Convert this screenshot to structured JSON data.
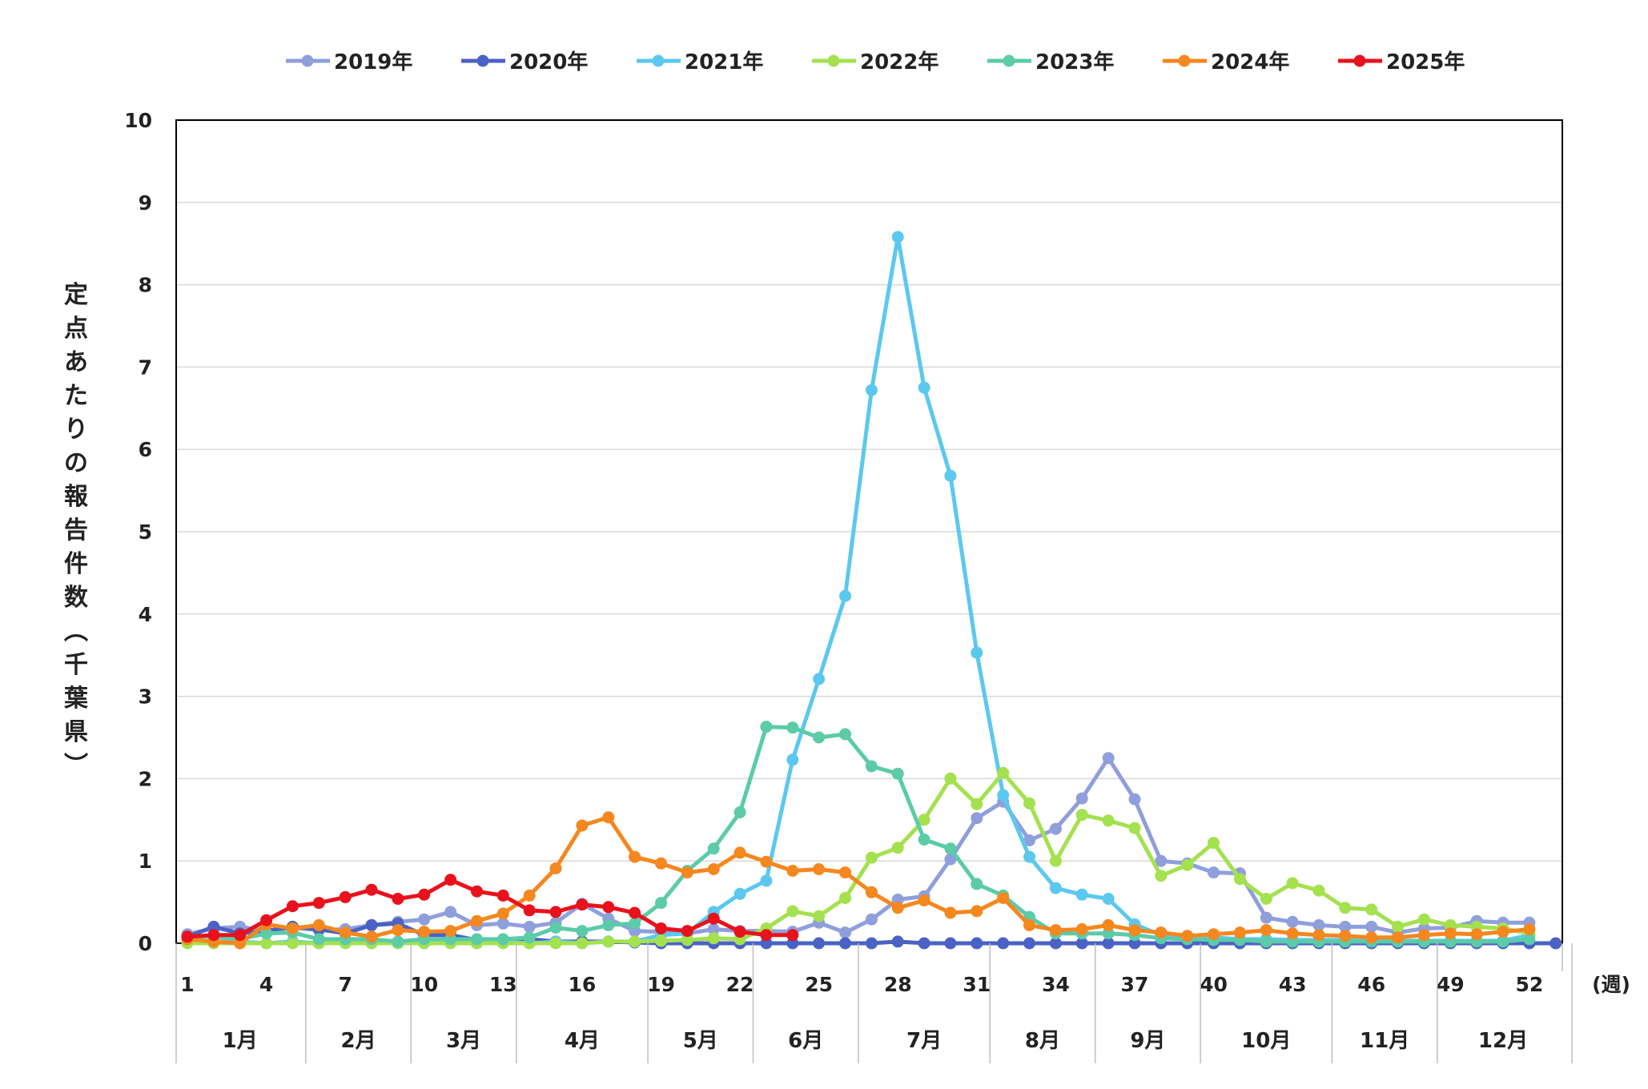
{
  "chart_data": {
    "type": "line",
    "ylabel": "定点あたりの報告件数（千葉県）",
    "xlabel": "(週)",
    "ylim": [
      0,
      10
    ],
    "yticks": [
      "0",
      "1",
      "2",
      "3",
      "4",
      "5",
      "6",
      "7",
      "8",
      "9",
      "10"
    ],
    "xlim": [
      1,
      53
    ],
    "xticks": [
      "1",
      "4",
      "7",
      "10",
      "13",
      "16",
      "19",
      "22",
      "25",
      "28",
      "31",
      "34",
      "37",
      "40",
      "43",
      "46",
      "49",
      "52"
    ],
    "months": [
      {
        "label": "1月",
        "start": 0.5,
        "end": 5.5
      },
      {
        "label": "2月",
        "start": 5.5,
        "end": 9.5
      },
      {
        "label": "3月",
        "start": 9.5,
        "end": 13.5
      },
      {
        "label": "4月",
        "start": 13.5,
        "end": 18.5
      },
      {
        "label": "5月",
        "start": 18.5,
        "end": 22.5
      },
      {
        "label": "6月",
        "start": 22.5,
        "end": 26.5
      },
      {
        "label": "7月",
        "start": 26.5,
        "end": 31.5
      },
      {
        "label": "8月",
        "start": 31.5,
        "end": 35.5
      },
      {
        "label": "9月",
        "start": 35.5,
        "end": 39.5
      },
      {
        "label": "10月",
        "start": 39.5,
        "end": 44.5
      },
      {
        "label": "11月",
        "start": 44.5,
        "end": 48.5
      },
      {
        "label": "12月",
        "start": 48.5,
        "end": 53.5
      }
    ],
    "grid": "horizontal",
    "legend_position": "top",
    "series": [
      {
        "name": "2019年",
        "color": "#8f9fdc",
        "start_week": 1,
        "values": [
          0.11,
          0.18,
          0.2,
          0.15,
          0.19,
          0.16,
          0.17,
          0.22,
          0.26,
          0.29,
          0.38,
          0.22,
          0.24,
          0.2,
          0.25,
          0.48,
          0.3,
          0.15,
          0.14,
          0.12,
          0.17,
          0.15,
          0.15,
          0.14,
          0.25,
          0.13,
          0.29,
          0.53,
          0.57,
          1.02,
          1.52,
          1.72,
          1.25,
          1.39,
          1.76,
          2.25,
          1.75,
          1.0,
          0.97,
          0.86,
          0.85,
          0.31,
          0.26,
          0.22,
          0.2,
          0.2,
          0.13,
          0.18,
          0.19,
          0.27,
          0.25,
          0.25
        ]
      },
      {
        "name": "2020年",
        "color": "#4a62c4",
        "start_week": 1,
        "values": [
          0.08,
          0.2,
          0.12,
          0.15,
          0.2,
          0.17,
          0.12,
          0.22,
          0.24,
          0.1,
          0.1,
          0.04,
          0.03,
          0.05,
          0.02,
          0.02,
          0.02,
          0.01,
          0.0,
          0.0,
          0.0,
          0.0,
          0.0,
          0.0,
          0.0,
          0.0,
          0.0,
          0.02,
          0.0,
          0.0,
          0.0,
          0.0,
          0.0,
          0.0,
          0.0,
          0.0,
          0.0,
          0.0,
          0.0,
          0.0,
          0.0,
          0.0,
          0.0,
          0.0,
          0.0,
          0.0,
          0.0,
          0.0,
          0.0,
          0.0,
          0.0,
          0.0,
          0.0
        ]
      },
      {
        "name": "2021年",
        "color": "#5bc8ef",
        "start_week": 1,
        "values": [
          0.03,
          0.02,
          0.02,
          0.0,
          0.02,
          0.0,
          0.02,
          0.0,
          0.0,
          0.0,
          0.02,
          0.0,
          0.02,
          0.0,
          0.02,
          0.0,
          0.02,
          0.02,
          0.1,
          0.12,
          0.38,
          0.6,
          0.76,
          2.23,
          3.21,
          4.22,
          6.72,
          8.58,
          6.75,
          5.68,
          3.53,
          1.8,
          1.05,
          0.67,
          0.59,
          0.54,
          0.23,
          0.1,
          0.07,
          0.07,
          0.05,
          0.05,
          0.04,
          0.04,
          0.04,
          0.03,
          0.03,
          0.03,
          0.03,
          0.03,
          0.03,
          0.1
        ]
      },
      {
        "name": "2022年",
        "color": "#a4e14f",
        "start_week": 1,
        "values": [
          0.0,
          0.0,
          0.0,
          0.0,
          0.0,
          0.0,
          0.0,
          0.0,
          0.0,
          0.0,
          0.0,
          0.0,
          0.0,
          0.0,
          0.0,
          0.0,
          0.02,
          0.02,
          0.03,
          0.04,
          0.06,
          0.05,
          0.18,
          0.39,
          0.33,
          0.55,
          1.04,
          1.16,
          1.5,
          2.0,
          1.69,
          2.07,
          1.7,
          1.0,
          1.56,
          1.49,
          1.4,
          0.82,
          0.95,
          1.22,
          0.78,
          0.54,
          0.73,
          0.64,
          0.43,
          0.41,
          0.2,
          0.29,
          0.22,
          0.2,
          0.18,
          0.12
        ]
      },
      {
        "name": "2023年",
        "color": "#5bcba8",
        "start_week": 1,
        "values": [
          0.08,
          0.08,
          0.05,
          0.12,
          0.13,
          0.05,
          0.05,
          0.05,
          0.02,
          0.05,
          0.05,
          0.05,
          0.05,
          0.07,
          0.19,
          0.15,
          0.22,
          0.24,
          0.49,
          0.88,
          1.15,
          1.59,
          2.63,
          2.62,
          2.5,
          2.54,
          2.15,
          2.06,
          1.26,
          1.15,
          0.72,
          0.58,
          0.32,
          0.12,
          0.12,
          0.12,
          0.1,
          0.06,
          0.05,
          0.04,
          0.04,
          0.02,
          0.02,
          0.02,
          0.02,
          0.02,
          0.02,
          0.02,
          0.02,
          0.02,
          0.02,
          0.05
        ]
      },
      {
        "name": "2024年",
        "color": "#f5871f",
        "start_week": 1,
        "values": [
          0.05,
          0.02,
          0.0,
          0.23,
          0.18,
          0.22,
          0.13,
          0.08,
          0.16,
          0.14,
          0.15,
          0.27,
          0.36,
          0.58,
          0.91,
          1.43,
          1.53,
          1.05,
          0.97,
          0.86,
          0.9,
          1.1,
          0.99,
          0.88,
          0.9,
          0.86,
          0.62,
          0.43,
          0.52,
          0.37,
          0.39,
          0.55,
          0.22,
          0.16,
          0.17,
          0.22,
          0.16,
          0.13,
          0.09,
          0.11,
          0.13,
          0.16,
          0.12,
          0.1,
          0.09,
          0.07,
          0.07,
          0.1,
          0.12,
          0.11,
          0.14,
          0.17
        ]
      },
      {
        "name": "2025年",
        "color": "#e8121c",
        "start_week": 1,
        "values": [
          0.08,
          0.1,
          0.1,
          0.28,
          0.45,
          0.49,
          0.56,
          0.65,
          0.54,
          0.59,
          0.77,
          0.63,
          0.58,
          0.4,
          0.38,
          0.47,
          0.44,
          0.37,
          0.18,
          0.15,
          0.3,
          0.14,
          0.1,
          0.1
        ]
      }
    ]
  }
}
